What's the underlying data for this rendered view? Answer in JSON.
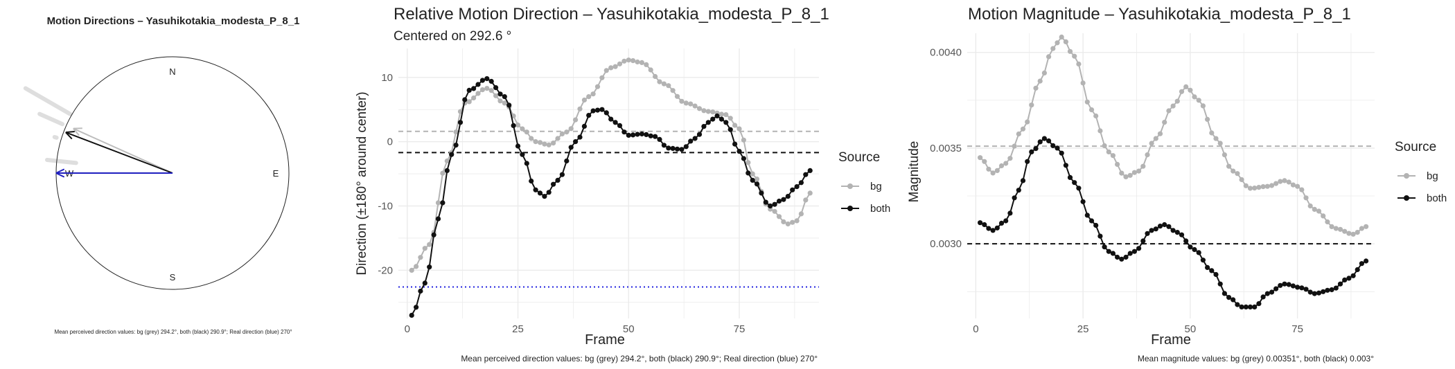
{
  "chart_data": [
    {
      "type": "compass",
      "title": "Motion Directions – Yasuhikotakia_modesta_P_8_1",
      "caption": "Mean perceived direction values: bg (grey) 294.2°, both (black) 290.9°; Real direction (blue) 270°",
      "compass_labels": [
        "N",
        "E",
        "S",
        "W"
      ],
      "arrows": [
        {
          "source": "bg",
          "direction_deg": 294.2,
          "color": "#bdbdbd"
        },
        {
          "source": "both",
          "direction_deg": 290.9,
          "color": "#111111"
        },
        {
          "source": "real",
          "direction_deg": 270,
          "color": "#1f1fbf"
        }
      ],
      "faint_traces_deg": [
        300,
        294,
        287,
        276
      ]
    },
    {
      "type": "line",
      "title": "Relative Motion Direction – Yasuhikotakia_modesta_P_8_1",
      "subtitle": "Centered on  292.6 °",
      "xlabel": "Frame",
      "ylabel": "Direction (±180° around center)",
      "xlim": [
        -2,
        93
      ],
      "ylim": [
        -27.5,
        14.5
      ],
      "xticks": [
        0,
        25,
        50,
        75
      ],
      "yticks": [
        -20,
        -10,
        0,
        10
      ],
      "legend_title": "Source",
      "series": [
        {
          "name": "bg",
          "color": "#b3b3b3",
          "knots": [
            [
              1,
              -20
            ],
            [
              5,
              -16
            ],
            [
              9,
              -3
            ],
            [
              13,
              6
            ],
            [
              18,
              8.3
            ],
            [
              22,
              6
            ],
            [
              26,
              2
            ],
            [
              29,
              0
            ],
            [
              32,
              -0.5
            ],
            [
              36,
              1.5
            ],
            [
              41,
              7
            ],
            [
              46,
              11.5
            ],
            [
              50,
              12.7
            ],
            [
              53,
              12.3
            ],
            [
              58,
              9
            ],
            [
              63,
              6
            ],
            [
              68,
              4.7
            ],
            [
              72,
              4.2
            ],
            [
              75,
              2
            ],
            [
              78,
              -5
            ],
            [
              82,
              -10.5
            ],
            [
              86,
              -12.8
            ],
            [
              88,
              -12.3
            ],
            [
              91,
              -8
            ]
          ],
          "mean_line": 1.6
        },
        {
          "name": "both",
          "color": "#111111",
          "knots": [
            [
              1,
              -27
            ],
            [
              4,
              -22
            ],
            [
              7,
              -12
            ],
            [
              10,
              -2
            ],
            [
              14,
              8
            ],
            [
              18,
              9.8
            ],
            [
              22,
              7
            ],
            [
              26,
              -2
            ],
            [
              29,
              -7.5
            ],
            [
              31,
              -8.5
            ],
            [
              34,
              -6
            ],
            [
              38,
              0
            ],
            [
              42,
              4.8
            ],
            [
              44,
              5
            ],
            [
              47,
              3
            ],
            [
              50,
              1
            ],
            [
              53,
              1.2
            ],
            [
              56,
              0.8
            ],
            [
              59,
              -1
            ],
            [
              62,
              -1.2
            ],
            [
              65,
              0.5
            ],
            [
              68,
              3
            ],
            [
              70,
              4
            ],
            [
              72,
              3
            ],
            [
              75,
              -1.5
            ],
            [
              78,
              -6
            ],
            [
              82,
              -10
            ],
            [
              85,
              -9
            ],
            [
              88,
              -7
            ],
            [
              91,
              -4.5
            ]
          ],
          "mean_line": -1.7
        },
        {
          "name": "real",
          "color": "#1f1fdf",
          "reference_line": -22.6
        }
      ]
    },
    {
      "type": "line",
      "title": "Motion Magnitude – Yasuhikotakia_modesta_P_8_1",
      "caption": "Mean magnitude values: bg (grey) 0.00351°, both (black) 0.003°",
      "xlabel": "Frame",
      "ylabel": "Magnitude",
      "xlim": [
        -2,
        93
      ],
      "ylim": [
        0.00261,
        0.0041
      ],
      "xticks": [
        0,
        25,
        50,
        75
      ],
      "yticks": [
        0.003,
        0.0035,
        0.004
      ],
      "ytick_labels": [
        "0.0030",
        "0.0035",
        "0.0040"
      ],
      "legend_title": "Source",
      "series": [
        {
          "name": "bg",
          "color": "#b3b3b3",
          "knots": [
            [
              1,
              0.00345
            ],
            [
              4,
              0.00337
            ],
            [
              7,
              0.00342
            ],
            [
              11,
              0.0036
            ],
            [
              15,
              0.00385
            ],
            [
              18,
              0.00402
            ],
            [
              20,
              0.00408
            ],
            [
              23,
              0.00398
            ],
            [
              27,
              0.0037
            ],
            [
              31,
              0.00348
            ],
            [
              35,
              0.00335
            ],
            [
              38,
              0.00338
            ],
            [
              42,
              0.00355
            ],
            [
              46,
              0.00372
            ],
            [
              49,
              0.00382
            ],
            [
              52,
              0.00375
            ],
            [
              56,
              0.00355
            ],
            [
              60,
              0.00338
            ],
            [
              64,
              0.00329
            ],
            [
              68,
              0.0033
            ],
            [
              72,
              0.00333
            ],
            [
              75,
              0.0033
            ],
            [
              79,
              0.00318
            ],
            [
              84,
              0.00308
            ],
            [
              88,
              0.00305
            ],
            [
              91,
              0.00309
            ]
          ],
          "mean_line": 0.00351
        },
        {
          "name": "both",
          "color": "#111111",
          "knots": [
            [
              1,
              0.00311
            ],
            [
              4,
              0.00307
            ],
            [
              7,
              0.00312
            ],
            [
              10,
              0.00328
            ],
            [
              13,
              0.00348
            ],
            [
              16,
              0.00355
            ],
            [
              19,
              0.0035
            ],
            [
              23,
              0.00332
            ],
            [
              27,
              0.00312
            ],
            [
              31,
              0.00296
            ],
            [
              34,
              0.00292
            ],
            [
              37,
              0.00296
            ],
            [
              41,
              0.00307
            ],
            [
              44,
              0.0031
            ],
            [
              47,
              0.00306
            ],
            [
              51,
              0.00297
            ],
            [
              55,
              0.00286
            ],
            [
              59,
              0.00272
            ],
            [
              62,
              0.00267
            ],
            [
              65,
              0.00267
            ],
            [
              68,
              0.00274
            ],
            [
              72,
              0.00279
            ],
            [
              76,
              0.00277
            ],
            [
              79,
              0.00274
            ],
            [
              83,
              0.00276
            ],
            [
              87,
              0.00282
            ],
            [
              91,
              0.00291
            ]
          ],
          "mean_line": 0.003
        }
      ]
    }
  ]
}
